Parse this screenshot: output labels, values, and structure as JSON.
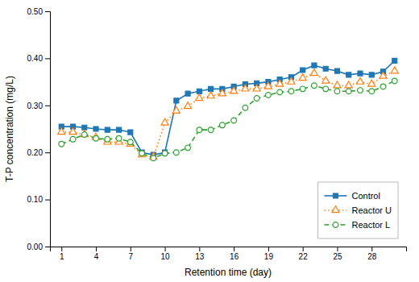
{
  "chart_data": {
    "type": "line",
    "xlabel": "Retention time (day)",
    "ylabel": "T-P concentration (mg/L)",
    "x": [
      1,
      2,
      3,
      4,
      5,
      6,
      7,
      8,
      9,
      10,
      11,
      12,
      13,
      14,
      15,
      16,
      17,
      18,
      19,
      20,
      21,
      22,
      23,
      24,
      25,
      26,
      27,
      28,
      29,
      30
    ],
    "series": [
      {
        "name": "Control",
        "marker": "square",
        "line_style": "solid",
        "values": [
          0.255,
          0.255,
          0.253,
          0.25,
          0.248,
          0.248,
          0.243,
          0.2,
          0.195,
          0.2,
          0.31,
          0.325,
          0.33,
          0.335,
          0.335,
          0.34,
          0.345,
          0.347,
          0.35,
          0.355,
          0.36,
          0.375,
          0.385,
          0.378,
          0.373,
          0.365,
          0.368,
          0.365,
          0.372,
          0.395
        ]
      },
      {
        "name": "Reactor U",
        "marker": "triangle",
        "line_style": "dotted",
        "values": [
          0.243,
          0.243,
          0.238,
          0.232,
          0.222,
          0.222,
          0.218,
          0.195,
          0.19,
          0.263,
          0.288,
          0.298,
          0.315,
          0.32,
          0.325,
          0.33,
          0.335,
          0.335,
          0.34,
          0.345,
          0.35,
          0.358,
          0.368,
          0.352,
          0.342,
          0.342,
          0.35,
          0.345,
          0.362,
          0.373
        ]
      },
      {
        "name": "Reactor L",
        "marker": "circle",
        "line_style": "dashed",
        "values": [
          0.218,
          0.228,
          0.238,
          0.23,
          0.228,
          0.23,
          0.222,
          0.198,
          0.188,
          0.198,
          0.2,
          0.21,
          0.248,
          0.248,
          0.258,
          0.268,
          0.295,
          0.315,
          0.322,
          0.328,
          0.33,
          0.335,
          0.342,
          0.335,
          0.33,
          0.33,
          0.332,
          0.33,
          0.34,
          0.352
        ]
      }
    ],
    "xlim": [
      0,
      31
    ],
    "xticks": [
      1,
      4,
      7,
      10,
      13,
      16,
      19,
      22,
      25,
      28
    ],
    "ylim": [
      0.0,
      0.5
    ],
    "yticks": [
      {
        "value": 0,
        "label": "0.00"
      },
      {
        "value": 0.1,
        "label": "0.10"
      },
      {
        "value": 0.2,
        "label": "0.20"
      },
      {
        "value": 0.3,
        "label": "0.30"
      },
      {
        "value": 0.4,
        "label": "0.40"
      },
      {
        "value": 0.5,
        "label": "0.50"
      }
    ],
    "grid": false,
    "legend": "lower right"
  }
}
